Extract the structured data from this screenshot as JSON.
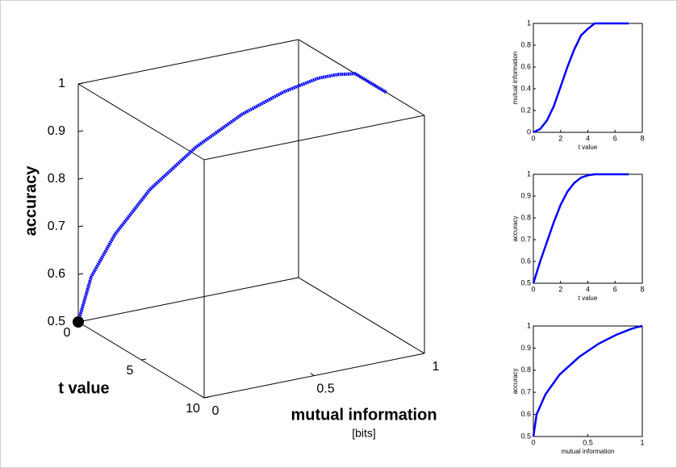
{
  "chart_data": [
    {
      "type": "line3d",
      "color": "#0000ff",
      "start_marker_color": "#000000",
      "xlabel": "mutual information",
      "xlabel_sub": "[bits]",
      "ylabel": "t value",
      "zlabel": "accuracy",
      "x": [
        0,
        0.03,
        0.11,
        0.24,
        0.42,
        0.6,
        0.76,
        0.89,
        0.95,
        1,
        1,
        1,
        1,
        1,
        1
      ],
      "y": [
        0,
        0.5,
        1,
        1.5,
        2,
        2.5,
        3,
        3.5,
        4,
        4.5,
        5,
        5.5,
        6,
        6.5,
        7
      ],
      "z": [
        0.5,
        0.6,
        0.69,
        0.78,
        0.86,
        0.92,
        0.96,
        0.985,
        0.995,
        1,
        1,
        1,
        1,
        1,
        1
      ],
      "xlim": [
        0,
        1
      ],
      "xticks": [
        0,
        0.5,
        1
      ],
      "ylim": [
        0,
        10
      ],
      "yticks": [
        0,
        5,
        10
      ],
      "zlim": [
        0.5,
        1
      ],
      "zticks": [
        0.5,
        0.6,
        0.7,
        0.8,
        0.9,
        1
      ]
    },
    {
      "type": "line",
      "color": "#0000ff",
      "xlabel": "t value",
      "ylabel": "mutual information",
      "x": [
        0,
        0.5,
        1,
        1.5,
        2,
        2.5,
        3,
        3.5,
        4,
        4.5,
        5,
        5.5,
        6,
        6.5,
        7
      ],
      "values": [
        0,
        0.03,
        0.11,
        0.24,
        0.42,
        0.6,
        0.76,
        0.89,
        0.95,
        1,
        1,
        1,
        1,
        1,
        1
      ],
      "xlim": [
        0,
        8
      ],
      "xticks": [
        0,
        2,
        4,
        6,
        8
      ],
      "ylim": [
        0,
        1
      ],
      "yticks": [
        0,
        0.2,
        0.4,
        0.6,
        0.8,
        1
      ]
    },
    {
      "type": "line",
      "color": "#0000ff",
      "xlabel": "t value",
      "ylabel": "accuracy",
      "x": [
        0,
        0.5,
        1,
        1.5,
        2,
        2.5,
        3,
        3.5,
        4,
        4.5,
        5,
        5.5,
        6,
        6.5,
        7
      ],
      "values": [
        0.5,
        0.6,
        0.69,
        0.78,
        0.86,
        0.92,
        0.96,
        0.985,
        0.995,
        1,
        1,
        1,
        1,
        1,
        1
      ],
      "xlim": [
        0,
        8
      ],
      "xticks": [
        0,
        2,
        4,
        6,
        8
      ],
      "ylim": [
        0.5,
        1
      ],
      "yticks": [
        0.5,
        0.6,
        0.7,
        0.8,
        0.9,
        1
      ]
    },
    {
      "type": "line",
      "color": "#0000ff",
      "xlabel": "mutual information",
      "ylabel": "accuracy",
      "x": [
        0,
        0.03,
        0.11,
        0.24,
        0.42,
        0.6,
        0.76,
        0.89,
        0.95,
        1
      ],
      "values": [
        0.5,
        0.6,
        0.69,
        0.78,
        0.86,
        0.92,
        0.96,
        0.985,
        0.995,
        1
      ],
      "xlim": [
        0,
        1
      ],
      "xticks": [
        0,
        0.5,
        1
      ],
      "ylim": [
        0.5,
        1
      ],
      "yticks": [
        0.5,
        0.6,
        0.7,
        0.8,
        0.9,
        1
      ]
    }
  ]
}
